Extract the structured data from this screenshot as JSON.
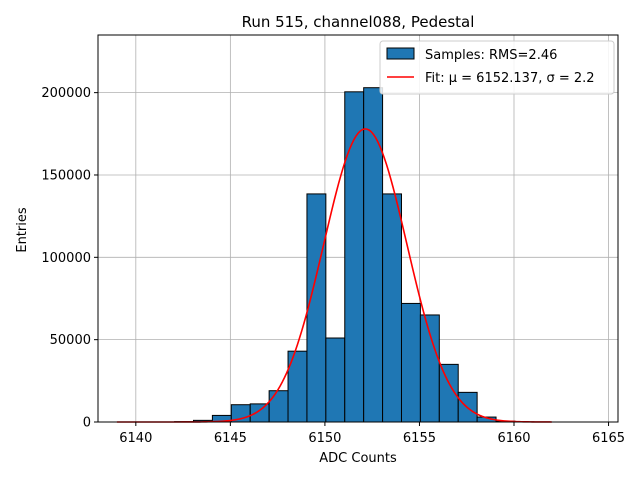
{
  "chart_data": {
    "type": "bar",
    "title": "Run 515, channel088, Pedestal",
    "xlabel": "ADC Counts",
    "ylabel": "Entries",
    "xlim": [
      6138.0,
      6165.5
    ],
    "ylim": [
      0,
      235000
    ],
    "xticks": [
      6140,
      6145,
      6150,
      6155,
      6160,
      6165
    ],
    "yticks": [
      0,
      50000,
      100000,
      150000,
      200000
    ],
    "grid": true,
    "legend_position": "top-right",
    "histogram": {
      "name": "Samples: RMS=2.46",
      "color": "#1f77b4",
      "edgecolor": "#000000",
      "bins": [
        {
          "x0": 6142.05,
          "x1": 6143.05,
          "value": 200
        },
        {
          "x0": 6143.05,
          "x1": 6144.05,
          "value": 1000
        },
        {
          "x0": 6144.05,
          "x1": 6145.05,
          "value": 4000
        },
        {
          "x0": 6145.05,
          "x1": 6146.05,
          "value": 10500
        },
        {
          "x0": 6146.05,
          "x1": 6147.05,
          "value": 11000
        },
        {
          "x0": 6147.05,
          "x1": 6148.05,
          "value": 19000
        },
        {
          "x0": 6148.05,
          "x1": 6149.05,
          "value": 43000
        },
        {
          "x0": 6149.05,
          "x1": 6150.05,
          "value": 138500
        },
        {
          "x0": 6150.05,
          "x1": 6151.05,
          "value": 51000
        },
        {
          "x0": 6151.05,
          "x1": 6152.05,
          "value": 200500
        },
        {
          "x0": 6152.05,
          "x1": 6153.05,
          "value": 203000
        },
        {
          "x0": 6153.05,
          "x1": 6154.05,
          "value": 138500
        },
        {
          "x0": 6154.05,
          "x1": 6155.05,
          "value": 72000
        },
        {
          "x0": 6155.05,
          "x1": 6156.05,
          "value": 65000
        },
        {
          "x0": 6156.05,
          "x1": 6157.05,
          "value": 35000
        },
        {
          "x0": 6157.05,
          "x1": 6158.05,
          "value": 18000
        },
        {
          "x0": 6158.05,
          "x1": 6159.05,
          "value": 3000
        },
        {
          "x0": 6159.05,
          "x1": 6160.05,
          "value": 500
        },
        {
          "x0": 6160.05,
          "x1": 6161.05,
          "value": 100
        }
      ]
    },
    "fit": {
      "name": "Fit: μ = 6152.137, σ = 2.2",
      "color": "#ff0000",
      "type": "gaussian",
      "mu": 6152.137,
      "sigma": 2.2,
      "amplitude": 178000,
      "x_range": [
        6139.0,
        6162.0
      ]
    }
  }
}
